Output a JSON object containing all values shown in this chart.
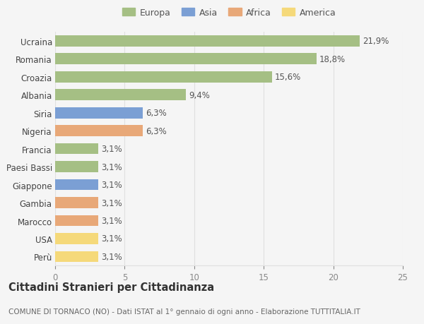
{
  "categories": [
    "Perù",
    "USA",
    "Marocco",
    "Gambia",
    "Giappone",
    "Paesi Bassi",
    "Francia",
    "Nigeria",
    "Siria",
    "Albania",
    "Croazia",
    "Romania",
    "Ucraina"
  ],
  "values": [
    3.1,
    3.1,
    3.1,
    3.1,
    3.1,
    3.1,
    3.1,
    6.3,
    6.3,
    9.4,
    15.6,
    18.8,
    21.9
  ],
  "colors": [
    "#f5d97a",
    "#f5d97a",
    "#e8a878",
    "#e8a878",
    "#7b9fd4",
    "#a5bf84",
    "#a5bf84",
    "#e8a878",
    "#7b9fd4",
    "#a5bf84",
    "#a5bf84",
    "#a5bf84",
    "#a5bf84"
  ],
  "labels": [
    "3,1%",
    "3,1%",
    "3,1%",
    "3,1%",
    "3,1%",
    "3,1%",
    "3,1%",
    "6,3%",
    "6,3%",
    "9,4%",
    "15,6%",
    "18,8%",
    "21,9%"
  ],
  "legend": [
    {
      "label": "Europa",
      "color": "#a5bf84"
    },
    {
      "label": "Asia",
      "color": "#7b9fd4"
    },
    {
      "label": "Africa",
      "color": "#e8a878"
    },
    {
      "label": "America",
      "color": "#f5d97a"
    }
  ],
  "xlim": [
    0,
    25
  ],
  "xticks": [
    0,
    5,
    10,
    15,
    20,
    25
  ],
  "title": "Cittadini Stranieri per Cittadinanza",
  "subtitle": "COMUNE DI TORNACO (NO) - Dati ISTAT al 1° gennaio di ogni anno - Elaborazione TUTTITALIA.IT",
  "bg_color": "#f5f5f5",
  "grid_color": "#e0e0e0",
  "bar_height": 0.62,
  "label_fontsize": 8.5,
  "tick_fontsize": 8.5,
  "title_fontsize": 10.5,
  "subtitle_fontsize": 7.5
}
